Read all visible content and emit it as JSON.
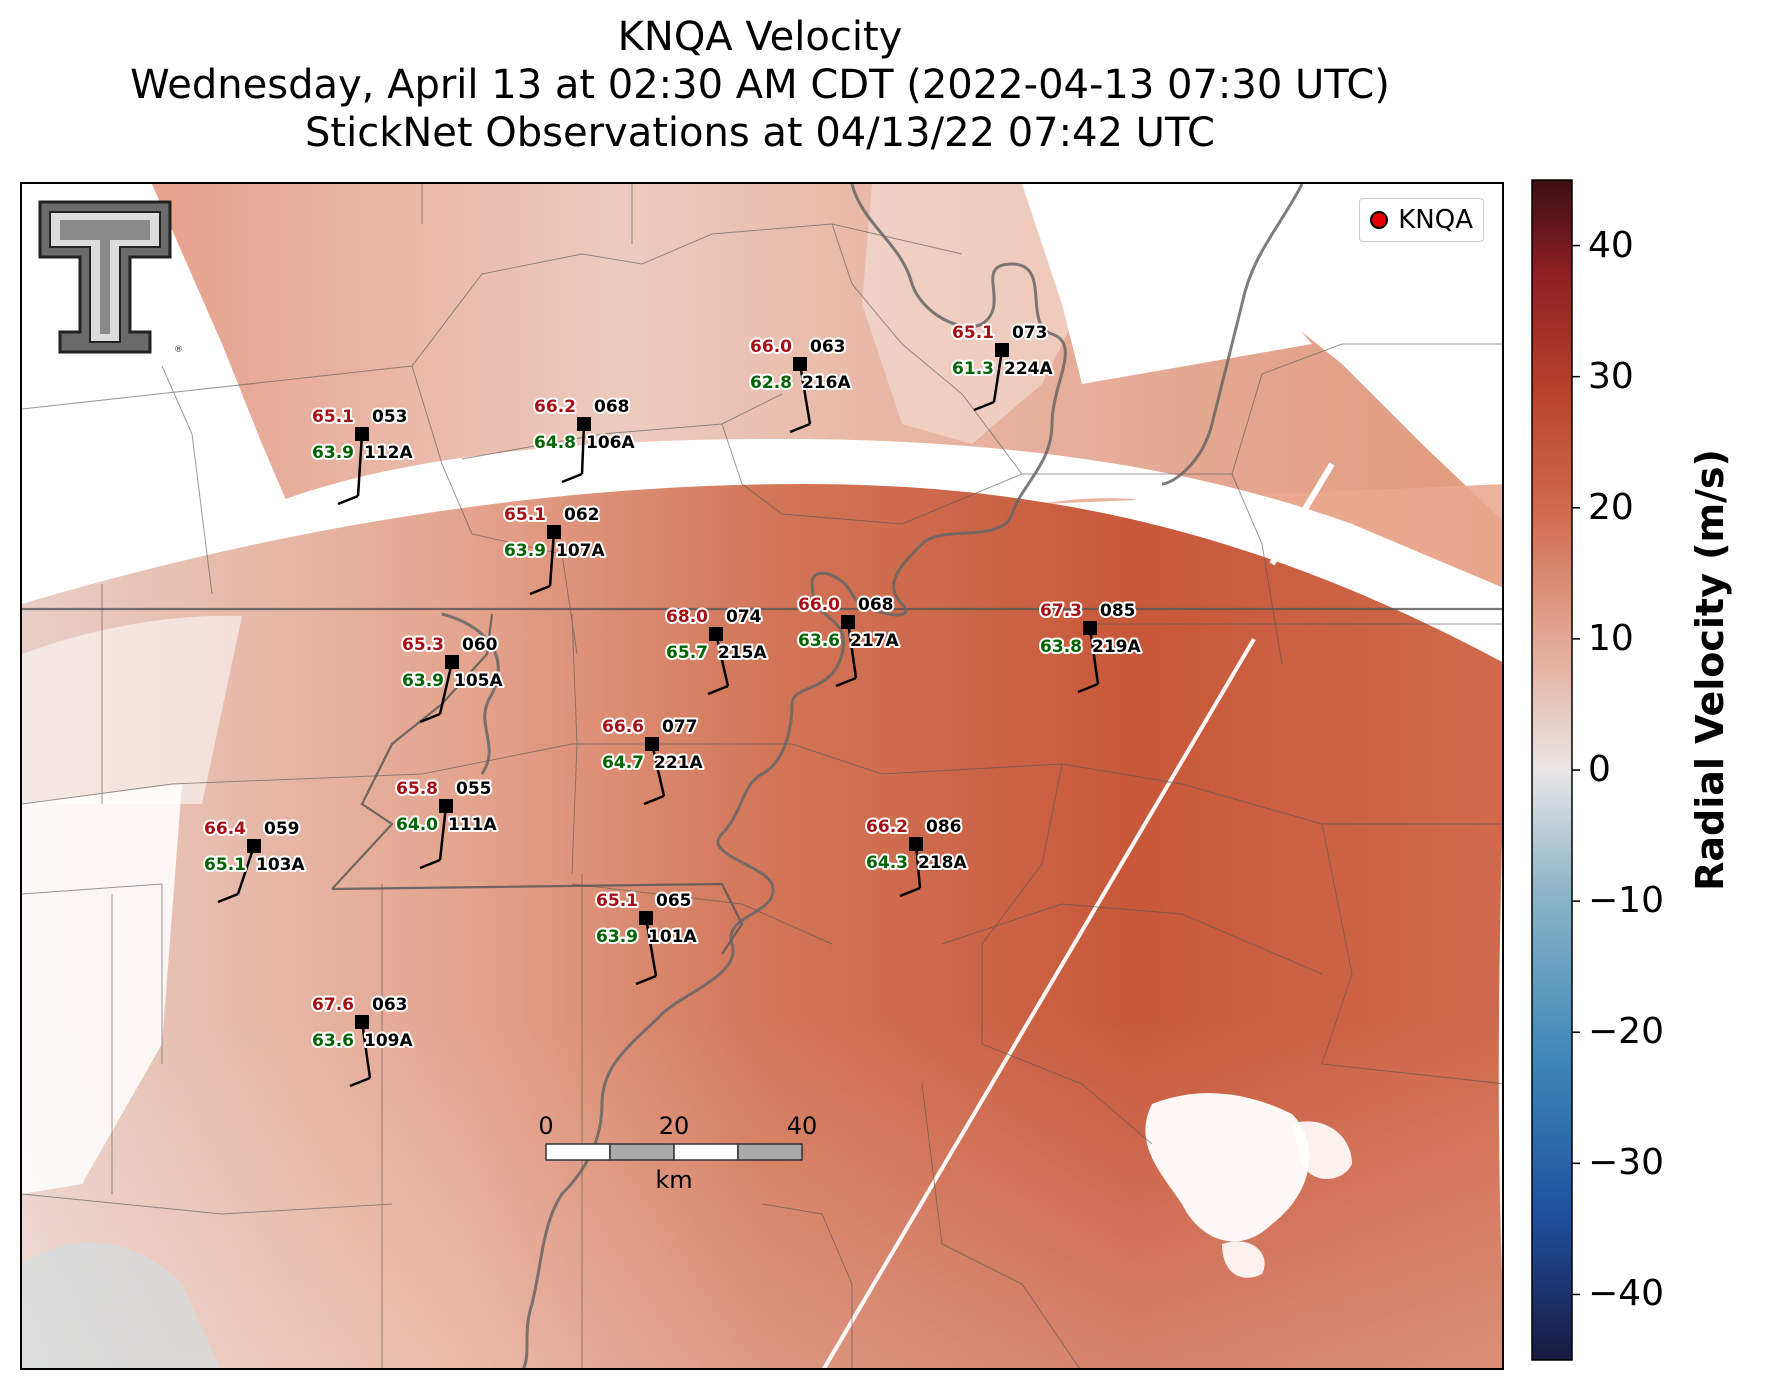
{
  "title": {
    "line1": "KNQA Velocity",
    "line2": "Wednesday, April 13 at 02:30 AM CDT (2022-04-13 07:30 UTC)",
    "line3": "StickNet Observations at 04/13/22 07:42 UTC"
  },
  "legend": {
    "label": "KNQA",
    "marker_color": "#e00000"
  },
  "colorbar": {
    "label": "Radial Velocity (m/s)",
    "min": -45,
    "max": 45,
    "ticks": [
      "40",
      "30",
      "20",
      "10",
      "0",
      "−10",
      "−20",
      "−30",
      "−40"
    ],
    "tick_values": [
      40,
      30,
      20,
      10,
      0,
      -10,
      -20,
      -30,
      -40
    ],
    "colors": [
      "#1a1a40",
      "#1e4f9e",
      "#3a86b8",
      "#8fb6c8",
      "#e9e6e6",
      "#e4ad9a",
      "#d06a4e",
      "#b8432b",
      "#8f1f24",
      "#3c0f14"
    ]
  },
  "scale_bar": {
    "ticks": [
      "0",
      "20",
      "40"
    ],
    "unit": "km"
  },
  "stations": [
    {
      "id": "053",
      "name": "112A",
      "temp": "65.1",
      "dew": "63.9"
    },
    {
      "id": "068",
      "name": "106A",
      "temp": "66.2",
      "dew": "64.8"
    },
    {
      "id": "063",
      "name": "216A",
      "temp": "66.0",
      "dew": "62.8"
    },
    {
      "id": "073",
      "name": "224A",
      "temp": "65.1",
      "dew": "61.3"
    },
    {
      "id": "062",
      "name": "107A",
      "temp": "65.1",
      "dew": "63.9"
    },
    {
      "id": "074",
      "name": "215A",
      "temp": "68.0",
      "dew": "65.7"
    },
    {
      "id": "068",
      "name": "217A",
      "temp": "66.0",
      "dew": "63.6"
    },
    {
      "id": "085",
      "name": "219A",
      "temp": "67.3",
      "dew": "63.8"
    },
    {
      "id": "060",
      "name": "105A",
      "temp": "65.3",
      "dew": "63.9"
    },
    {
      "id": "077",
      "name": "221A",
      "temp": "66.6",
      "dew": "64.7"
    },
    {
      "id": "055",
      "name": "111A",
      "temp": "65.8",
      "dew": "64.0"
    },
    {
      "id": "059",
      "name": "103A",
      "temp": "66.4",
      "dew": "65.1"
    },
    {
      "id": "086",
      "name": "218A",
      "temp": "66.2",
      "dew": "64.3"
    },
    {
      "id": "065",
      "name": "101A",
      "temp": "65.1",
      "dew": "63.9"
    },
    {
      "id": "063",
      "name": "109A",
      "temp": "67.6",
      "dew": "63.6"
    }
  ],
  "logo": {
    "text": "TT"
  }
}
